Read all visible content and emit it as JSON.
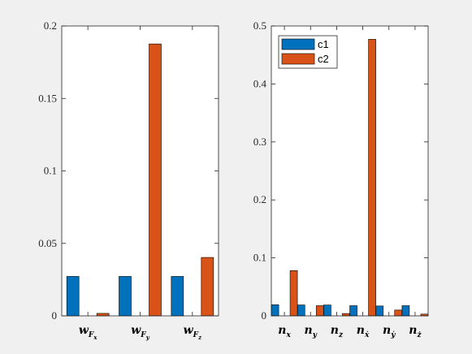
{
  "colors": {
    "c1": "#0072BD",
    "c2": "#D95319",
    "axis": "#262626",
    "background": "#f0f0f0",
    "plot_background": "#ffffff"
  },
  "chart_data": [
    {
      "type": "bar",
      "categories": [
        {
          "base": "w",
          "sub": "F",
          "subsub": "x"
        },
        {
          "base": "w",
          "sub": "F",
          "subsub": "y"
        },
        {
          "base": "w",
          "sub": "F",
          "subsub": "z"
        }
      ],
      "series": [
        {
          "name": "c1",
          "values": [
            0.0272,
            0.0272,
            0.0272
          ]
        },
        {
          "name": "c2",
          "values": [
            0.0017,
            0.1876,
            0.0403
          ]
        }
      ],
      "ylim": [
        0,
        0.2
      ],
      "yticks": [
        0,
        0.05,
        0.1,
        0.15,
        0.2
      ],
      "ytick_labels": [
        "0",
        "0.05",
        "0.1",
        "0.15",
        "0.2"
      ],
      "legend": false,
      "grid": false
    },
    {
      "type": "bar",
      "categories": [
        {
          "base": "n",
          "sub": "x"
        },
        {
          "base": "n",
          "sub": "y"
        },
        {
          "base": "n",
          "sub": "z"
        },
        {
          "base": "n",
          "sub": "ẋ"
        },
        {
          "base": "n",
          "sub": "ẏ"
        },
        {
          "base": "n",
          "sub": "ż"
        }
      ],
      "series": [
        {
          "name": "c1",
          "values": [
            0.0191,
            0.0188,
            0.0187,
            0.0175,
            0.017,
            0.0175
          ]
        },
        {
          "name": "c2",
          "values": [
            0.078,
            0.0175,
            0.004,
            0.477,
            0.01,
            0.003
          ]
        }
      ],
      "ylim": [
        0,
        0.5
      ],
      "yticks": [
        0,
        0.1,
        0.2,
        0.3,
        0.4,
        0.5
      ],
      "ytick_labels": [
        "0",
        "0.1",
        "0.2",
        "0.3",
        "0.4",
        "0.5"
      ],
      "legend": true,
      "legend_position": "top-left",
      "grid": false
    }
  ]
}
